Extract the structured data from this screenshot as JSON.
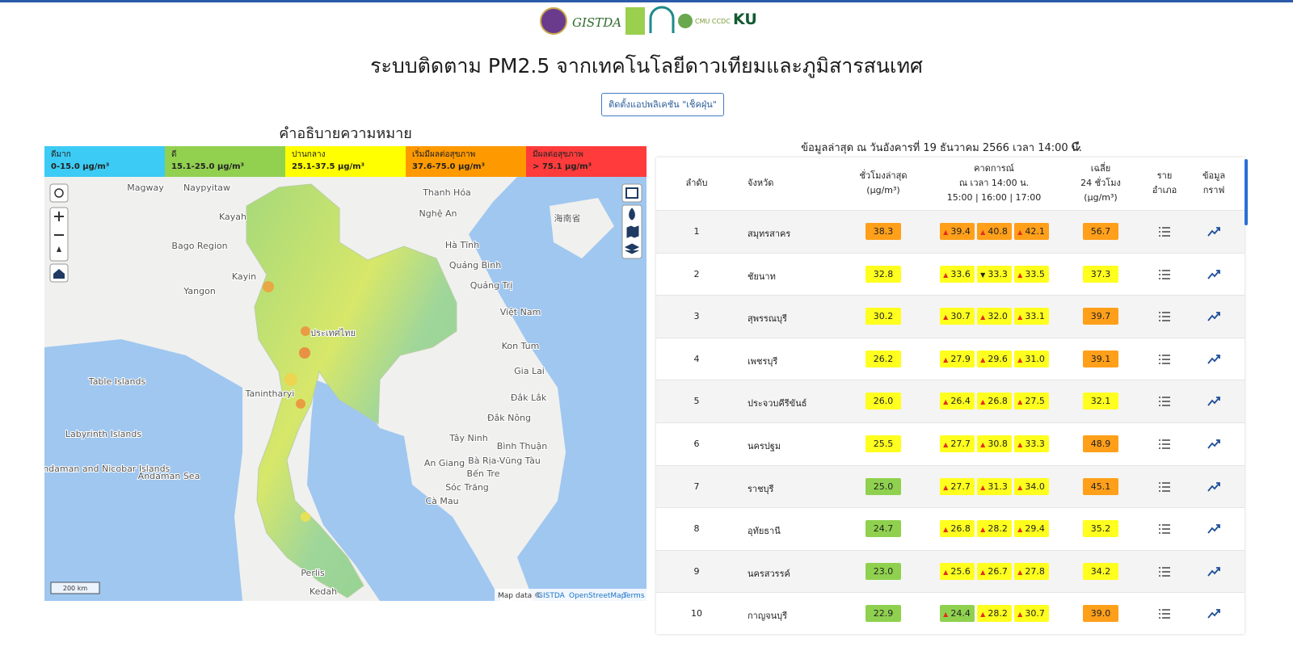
{
  "header": {
    "logos": [
      "GISTDA",
      "CMU CCDC",
      "KU"
    ],
    "title": "ระบบติดตาม PM2.5 จากเทคโนโลยีดาวเทียมและภูมิสารสนเทศ",
    "button": "ติดตั้งแอปพลิเคชัน \"เช็คฝุ่น\""
  },
  "legend": {
    "title": "คำอธิบายความหมาย",
    "items": [
      {
        "label": "ดีมาก",
        "range": "0-15.0 µg/m³",
        "color": "#3ccbf4"
      },
      {
        "label": "ดี",
        "range": "15.1-25.0 µg/m³",
        "color": "#92d050"
      },
      {
        "label": "ปานกลาง",
        "range": "25.1-37.5 µg/m³",
        "color": "#ffff00"
      },
      {
        "label": "เริ่มมีผลต่อสุขภาพ",
        "range": "37.6-75.0 µg/m³",
        "color": "#ff9900"
      },
      {
        "label": "มีผลต่อสุขภาพ",
        "range": "> 75.1 µg/m³",
        "color": "#ff3b3b"
      }
    ]
  },
  "map": {
    "labels": [
      "Magway",
      "Naypyitaw",
      "Kayah",
      "Bago Region",
      "Kayin",
      "Yangon",
      "ประเทศไทย",
      "Thanh Hóa",
      "Nghệ An",
      "海南省",
      "Hà Tĩnh",
      "Quảng Bình",
      "Quảng Trị",
      "Việt Nam",
      "Kon Tum",
      "Gia Lai",
      "Đắk Lắk",
      "Đắk Nông",
      "Tanintharyi",
      "Table Islands",
      "Labyrinth Islands",
      "Andaman and Nicobar Islands",
      "Andaman Sea",
      "Tây Ninh",
      "Bình Thuận",
      "An Giang",
      "Bà Rịa-Vũng Tàu",
      "Bến Tre",
      "Sóc Trăng",
      "Cà Mau",
      "Perlis",
      "Kedah"
    ],
    "scale": "200 km",
    "attribution": [
      "Map data ©",
      "GISTDA",
      "OpenStreetMap",
      "Terms"
    ]
  },
  "table": {
    "updated": "ข้อมูลล่าสุด ณ วันอังคารที่ 19 ธันวาคม 2566 เวลา 14:00 น.",
    "headers": [
      [
        "ลำดับ"
      ],
      [
        "จังหวัด"
      ],
      [
        "ชั่วโมงล่าสุด",
        "(µg/m³)"
      ],
      [
        "คาดการณ์",
        "ณ เวลา 14:00 น.",
        "15:00 | 16:00 | 17:00"
      ],
      [
        "เฉลี่ย",
        "24 ชั่วโมง",
        "(µg/m³)"
      ],
      [
        "ราย",
        "อำเภอ"
      ],
      [
        "ข้อมูล",
        "กราฟ"
      ]
    ],
    "rows": [
      {
        "rank": "1",
        "province": "สมุทรสาคร",
        "current": {
          "value": "38.3",
          "color": "#ff9f1a"
        },
        "forecast": [
          {
            "trend": "▲",
            "value": "39.4",
            "color": "#ff9f1a"
          },
          {
            "trend": "▲",
            "value": "40.8",
            "color": "#ff9f1a"
          },
          {
            "trend": "▲",
            "value": "42.1",
            "color": "#ff9f1a"
          }
        ],
        "avg": {
          "value": "56.7",
          "color": "#ff9f1a"
        }
      },
      {
        "rank": "2",
        "province": "ชัยนาท",
        "current": {
          "value": "32.8",
          "color": "#ffff1f"
        },
        "forecast": [
          {
            "trend": "▲",
            "value": "33.6",
            "color": "#ffff1f"
          },
          {
            "trend": "▼",
            "value": "33.3",
            "color": "#ffff1f"
          },
          {
            "trend": "▲",
            "value": "33.5",
            "color": "#ffff1f"
          }
        ],
        "avg": {
          "value": "37.3",
          "color": "#ffff1f"
        }
      },
      {
        "rank": "3",
        "province": "สุพรรณบุรี",
        "current": {
          "value": "30.2",
          "color": "#ffff1f"
        },
        "forecast": [
          {
            "trend": "▲",
            "value": "30.7",
            "color": "#ffff1f"
          },
          {
            "trend": "▲",
            "value": "32.0",
            "color": "#ffff1f"
          },
          {
            "trend": "▲",
            "value": "33.1",
            "color": "#ffff1f"
          }
        ],
        "avg": {
          "value": "39.7",
          "color": "#ff9f1a"
        }
      },
      {
        "rank": "4",
        "province": "เพชรบุรี",
        "current": {
          "value": "26.2",
          "color": "#ffff1f"
        },
        "forecast": [
          {
            "trend": "▲",
            "value": "27.9",
            "color": "#ffff1f"
          },
          {
            "trend": "▲",
            "value": "29.6",
            "color": "#ffff1f"
          },
          {
            "trend": "▲",
            "value": "31.0",
            "color": "#ffff1f"
          }
        ],
        "avg": {
          "value": "39.1",
          "color": "#ff9f1a"
        }
      },
      {
        "rank": "5",
        "province": "ประจวบคีรีขันธ์",
        "current": {
          "value": "26.0",
          "color": "#ffff1f"
        },
        "forecast": [
          {
            "trend": "▲",
            "value": "26.4",
            "color": "#ffff1f"
          },
          {
            "trend": "▲",
            "value": "26.8",
            "color": "#ffff1f"
          },
          {
            "trend": "▲",
            "value": "27.5",
            "color": "#ffff1f"
          }
        ],
        "avg": {
          "value": "32.1",
          "color": "#ffff1f"
        }
      },
      {
        "rank": "6",
        "province": "นครปฐม",
        "current": {
          "value": "25.5",
          "color": "#ffff1f"
        },
        "forecast": [
          {
            "trend": "▲",
            "value": "27.7",
            "color": "#ffff1f"
          },
          {
            "trend": "▲",
            "value": "30.8",
            "color": "#ffff1f"
          },
          {
            "trend": "▲",
            "value": "33.3",
            "color": "#ffff1f"
          }
        ],
        "avg": {
          "value": "48.9",
          "color": "#ff9f1a"
        }
      },
      {
        "rank": "7",
        "province": "ราชบุรี",
        "current": {
          "value": "25.0",
          "color": "#8fd14f"
        },
        "forecast": [
          {
            "trend": "▲",
            "value": "27.7",
            "color": "#ffff1f"
          },
          {
            "trend": "▲",
            "value": "31.3",
            "color": "#ffff1f"
          },
          {
            "trend": "▲",
            "value": "34.0",
            "color": "#ffff1f"
          }
        ],
        "avg": {
          "value": "45.1",
          "color": "#ff9f1a"
        }
      },
      {
        "rank": "8",
        "province": "อุทัยธานี",
        "current": {
          "value": "24.7",
          "color": "#8fd14f"
        },
        "forecast": [
          {
            "trend": "▲",
            "value": "26.8",
            "color": "#ffff1f"
          },
          {
            "trend": "▲",
            "value": "28.2",
            "color": "#ffff1f"
          },
          {
            "trend": "▲",
            "value": "29.4",
            "color": "#ffff1f"
          }
        ],
        "avg": {
          "value": "35.2",
          "color": "#ffff1f"
        }
      },
      {
        "rank": "9",
        "province": "นครสวรรค์",
        "current": {
          "value": "23.0",
          "color": "#8fd14f"
        },
        "forecast": [
          {
            "trend": "▲",
            "value": "25.6",
            "color": "#ffff1f"
          },
          {
            "trend": "▲",
            "value": "26.7",
            "color": "#ffff1f"
          },
          {
            "trend": "▲",
            "value": "27.8",
            "color": "#ffff1f"
          }
        ],
        "avg": {
          "value": "34.2",
          "color": "#ffff1f"
        }
      },
      {
        "rank": "10",
        "province": "กาญจนบุรี",
        "current": {
          "value": "22.9",
          "color": "#8fd14f"
        },
        "forecast": [
          {
            "trend": "▲",
            "value": "24.4",
            "color": "#8fd14f"
          },
          {
            "trend": "▲",
            "value": "28.2",
            "color": "#ffff1f"
          },
          {
            "trend": "▲",
            "value": "30.7",
            "color": "#ffff1f"
          }
        ],
        "avg": {
          "value": "39.0",
          "color": "#ff9f1a"
        }
      }
    ]
  }
}
